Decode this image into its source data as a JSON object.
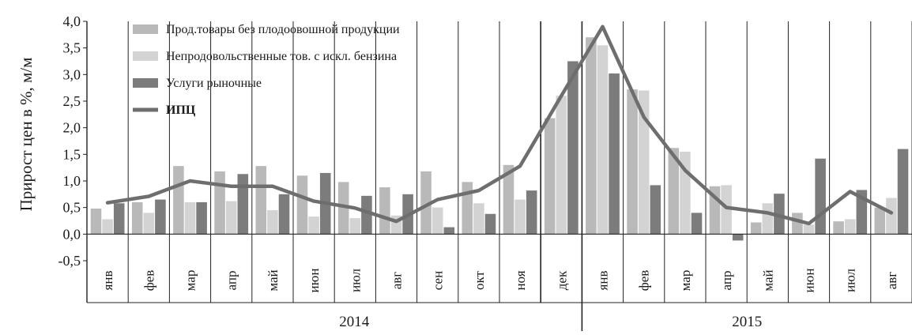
{
  "chart_data": {
    "type": "bar",
    "ylabel": "Прирост цен в %, м/м",
    "ylim": [
      -0.5,
      4.0
    ],
    "y_ticks": [
      "-0,5",
      "0,0",
      "0,5",
      "1,0",
      "1,5",
      "2,0",
      "2,5",
      "3,0",
      "3,5",
      "4,0"
    ],
    "categories": [
      "янв",
      "фев",
      "мар",
      "апр",
      "май",
      "июн",
      "июл",
      "авг",
      "сен",
      "окт",
      "ноя",
      "дек",
      "янв",
      "фев",
      "мар",
      "апр",
      "май",
      "июн",
      "июл",
      "авг"
    ],
    "years": [
      {
        "label": "2014",
        "start": 0,
        "end": 11
      },
      {
        "label": "2015",
        "start": 12,
        "end": 19
      }
    ],
    "grid": "vertical",
    "legend_position": "top-left",
    "series": [
      {
        "name": "Прод.товары без плодоовошной продукции",
        "kind": "bar",
        "color": "#b9b9b9",
        "values": [
          0.48,
          0.6,
          1.28,
          1.18,
          1.28,
          1.1,
          0.98,
          0.88,
          1.18,
          0.98,
          1.3,
          2.18,
          3.7,
          2.72,
          1.62,
          0.9,
          0.22,
          0.4,
          0.24,
          0.5
        ]
      },
      {
        "name": "Непродовольственные тов. с искл. бензина",
        "kind": "bar",
        "color": "#d3d3d3",
        "values": [
          0.28,
          0.4,
          0.6,
          0.62,
          0.45,
          0.33,
          0.3,
          0.35,
          0.5,
          0.58,
          0.65,
          2.6,
          3.55,
          2.7,
          1.55,
          0.92,
          0.58,
          0.18,
          0.28,
          0.68
        ]
      },
      {
        "name": "Услуги рыночные",
        "kind": "bar",
        "color": "#7c7c7c",
        "values": [
          0.58,
          0.65,
          0.6,
          1.13,
          0.75,
          1.15,
          0.72,
          0.75,
          0.13,
          0.38,
          0.82,
          3.25,
          3.02,
          0.92,
          0.4,
          -0.12,
          0.76,
          1.42,
          0.83,
          1.6
        ]
      },
      {
        "name": "ИПЦ",
        "kind": "line",
        "color": "#6e6e6e",
        "values": [
          0.59,
          0.71,
          1.0,
          0.9,
          0.9,
          0.62,
          0.49,
          0.24,
          0.65,
          0.82,
          1.28,
          2.6,
          3.9,
          2.2,
          1.2,
          0.5,
          0.4,
          0.2,
          0.8,
          0.4
        ]
      }
    ]
  }
}
